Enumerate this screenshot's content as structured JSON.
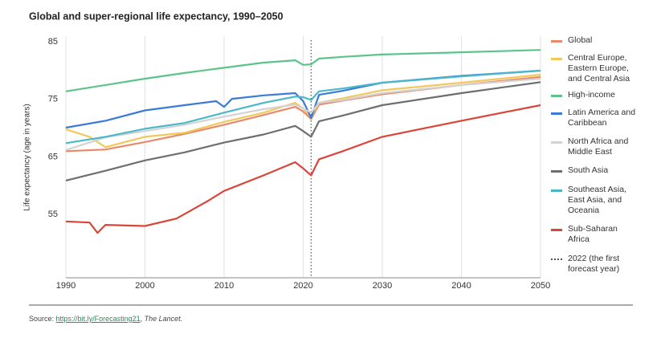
{
  "chart_data": {
    "type": "line",
    "title": "Global and super-regional life expectancy, 1990–2050",
    "y_label": "Life expectancy (age in years)",
    "xlim": [
      1990,
      2050
    ],
    "xticks": [
      1990,
      2000,
      2010,
      2020,
      2030,
      2040,
      2050
    ],
    "ylim": [
      44,
      86
    ],
    "yticks": [
      55,
      65,
      75,
      85
    ],
    "grid": "x",
    "legend": "right",
    "forecast_line": {
      "x": 2021,
      "label": "2022 (the first forecast year)",
      "color": "#555555"
    },
    "series": [
      {
        "name": "Global",
        "color": "#e8896a",
        "x": [
          1990,
          1995,
          2000,
          2005,
          2010,
          2015,
          2019,
          2020,
          2021,
          2022,
          2025,
          2030,
          2040,
          2050
        ],
        "values": [
          66.0,
          66.3,
          67.6,
          69.0,
          70.6,
          72.3,
          73.7,
          72.9,
          71.6,
          74.1,
          74.8,
          75.9,
          77.5,
          78.9
        ]
      },
      {
        "name": "Central Europe, Eastern Europe, and Central Asia",
        "color": "#f2c75c",
        "x": [
          1990,
          1993,
          1995,
          2000,
          2005,
          2010,
          2015,
          2019,
          2020,
          2021,
          2022,
          2025,
          2030,
          2040,
          2050
        ],
        "values": [
          69.8,
          68.5,
          66.7,
          68.5,
          69.2,
          71.1,
          72.7,
          74.4,
          73.4,
          72.0,
          74.4,
          75.2,
          76.6,
          77.9,
          79.3
        ]
      },
      {
        "name": "High-income",
        "color": "#5cc48a",
        "x": [
          1990,
          1995,
          2000,
          2005,
          2010,
          2015,
          2019,
          2020,
          2021,
          2022,
          2025,
          2030,
          2040,
          2050
        ],
        "values": [
          76.4,
          77.5,
          78.6,
          79.6,
          80.5,
          81.4,
          81.8,
          81.0,
          81.1,
          82.1,
          82.4,
          82.8,
          83.2,
          83.6
        ]
      },
      {
        "name": "Latin America and Caribbean",
        "color": "#3a7bd5",
        "x": [
          1990,
          1995,
          2000,
          2005,
          2009,
          2010,
          2011,
          2015,
          2019,
          2020,
          2021,
          2022,
          2025,
          2030,
          2040,
          2050
        ],
        "values": [
          70.1,
          71.3,
          73.1,
          74.0,
          74.7,
          73.7,
          75.1,
          75.7,
          76.1,
          74.7,
          71.8,
          75.8,
          76.5,
          77.9,
          79.1,
          80.0
        ]
      },
      {
        "name": "North Africa and Middle East",
        "color": "#d3d3d3",
        "x": [
          1990,
          1995,
          2000,
          2005,
          2010,
          2015,
          2019,
          2020,
          2021,
          2022,
          2025,
          2030,
          2040,
          2050
        ],
        "values": [
          66.2,
          68.4,
          69.5,
          70.6,
          72.0,
          73.3,
          74.1,
          73.4,
          72.7,
          74.4,
          74.9,
          76.1,
          77.5,
          78.6
        ]
      },
      {
        "name": "South Asia",
        "color": "#6e6e6e",
        "x": [
          1990,
          1995,
          2000,
          2005,
          2010,
          2015,
          2019,
          2020,
          2021,
          2022,
          2025,
          2030,
          2040,
          2050
        ],
        "values": [
          60.9,
          62.6,
          64.4,
          65.8,
          67.5,
          68.9,
          70.4,
          69.5,
          68.5,
          71.2,
          72.2,
          74.0,
          76.1,
          78.0
        ]
      },
      {
        "name": "Southeast Asia, East Asia, and Oceania",
        "color": "#4bb8c9",
        "x": [
          1990,
          1995,
          2000,
          2005,
          2010,
          2015,
          2019,
          2020,
          2021,
          2022,
          2025,
          2030,
          2040,
          2050
        ],
        "values": [
          67.4,
          68.5,
          69.9,
          70.9,
          72.7,
          74.4,
          75.5,
          75.4,
          74.9,
          76.4,
          76.9,
          77.9,
          79.0,
          80.0
        ]
      },
      {
        "name": "Sub-Saharan Africa",
        "color": "#d9453a",
        "x": [
          1990,
          1993,
          1994,
          1995,
          2000,
          2004,
          2008,
          2010,
          2015,
          2019,
          2020,
          2021,
          2022,
          2025,
          2030,
          2040,
          2050
        ],
        "values": [
          53.8,
          53.6,
          51.8,
          53.2,
          53.0,
          54.3,
          57.4,
          59.1,
          61.8,
          64.1,
          63.0,
          61.8,
          64.6,
          66.0,
          68.5,
          71.3,
          74.0
        ]
      }
    ]
  },
  "source": {
    "label": "Source:",
    "link": "https://bit.ly/Forecasting21",
    "separator": ",",
    "publication": "The Lancet."
  }
}
